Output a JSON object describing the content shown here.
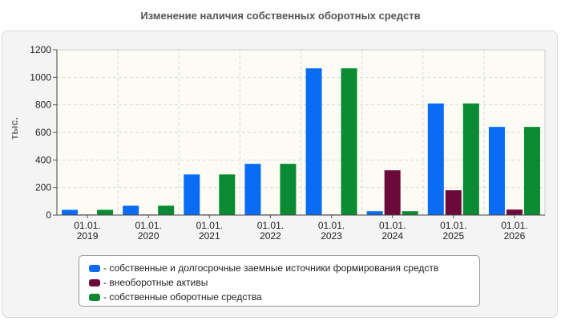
{
  "chart_data": {
    "type": "bar",
    "title": "Изменение наличия собственных оборотных средств",
    "ylabel": "тыс.",
    "xlabel": "",
    "ylim": [
      0,
      1200
    ],
    "yticks": [
      0,
      200,
      400,
      600,
      800,
      1000,
      1200
    ],
    "grid": true,
    "legend_position": "bottom",
    "categories": [
      [
        "01.01.",
        "2019"
      ],
      [
        "01.01.",
        "2020"
      ],
      [
        "01.01.",
        "2021"
      ],
      [
        "01.01.",
        "2022"
      ],
      [
        "01.01.",
        "2023"
      ],
      [
        "01.01.",
        "2024"
      ],
      [
        "01.01.",
        "2025"
      ],
      [
        "01.01.",
        "2026"
      ]
    ],
    "series": [
      {
        "name": "собственные и долгосрочные заемные источники формирования средств",
        "legend_label": "- собственные и долгосрочные заемные источники формирования средств",
        "color": "#0a6cf2",
        "values": [
          38,
          68,
          295,
          372,
          1065,
          28,
          810,
          640
        ]
      },
      {
        "name": "внеоборотные активы",
        "legend_label": "- внеоборотные активы",
        "color": "#6b0a3a",
        "values": [
          4,
          4,
          4,
          4,
          4,
          325,
          180,
          40
        ]
      },
      {
        "name": "собственные оборотные средства",
        "legend_label": "- собственные оборотные средства",
        "color": "#0a8a32",
        "values": [
          38,
          68,
          295,
          372,
          1065,
          28,
          810,
          640
        ]
      }
    ]
  }
}
